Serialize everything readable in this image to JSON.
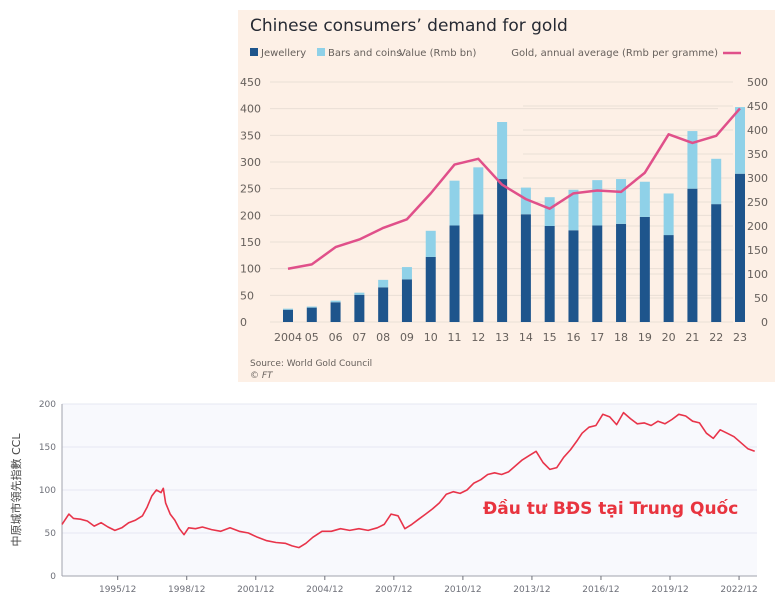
{
  "chart_data": [
    {
      "type": "bar",
      "title": "Chinese consumers’ demand for gold",
      "legend": {
        "jewellery": "Jewellery",
        "bars_coins": "Bars and coins",
        "value_label": "Value (Rmb bn)",
        "gold_price": "Gold, annual average (Rmb per gramme)"
      },
      "categories": [
        "2004",
        "05",
        "06",
        "07",
        "08",
        "09",
        "10",
        "11",
        "12",
        "13",
        "14",
        "15",
        "16",
        "17",
        "18",
        "19",
        "20",
        "21",
        "22",
        "23"
      ],
      "series": [
        {
          "name": "Jewellery",
          "axis": "left",
          "stacked": true,
          "color": "#1e558c",
          "values": [
            23,
            27,
            37,
            51,
            65,
            80,
            122,
            181,
            202,
            268,
            202,
            180,
            172,
            181,
            184,
            197,
            163,
            250,
            221,
            278
          ]
        },
        {
          "name": "Bars and coins",
          "axis": "left",
          "stacked": true,
          "color": "#8fd1e8",
          "values": [
            2,
            2,
            3,
            4,
            14,
            23,
            49,
            84,
            88,
            107,
            50,
            54,
            76,
            85,
            84,
            66,
            78,
            108,
            85,
            125
          ]
        },
        {
          "name": "Gold, annual average (Rmb per gramme)",
          "axis": "right",
          "type": "line",
          "color": "#e0508a",
          "values": [
            111,
            120,
            156,
            172,
            196,
            214,
            268,
            328,
            340,
            286,
            256,
            236,
            268,
            274,
            271,
            311,
            391,
            373,
            388,
            445
          ]
        }
      ],
      "ylim_left": [
        0,
        450
      ],
      "yticks_left": [
        "0",
        "50",
        "100",
        "150",
        "200",
        "250",
        "300",
        "350",
        "400",
        "450"
      ],
      "ylim_right": [
        0,
        500
      ],
      "yticks_right": [
        "0",
        "50",
        "100",
        "150",
        "200",
        "250",
        "300",
        "350",
        "400",
        "450",
        "500"
      ],
      "grid": true,
      "legend_position": "top",
      "source": "Source: World Gold Council",
      "credit": "© FT"
    },
    {
      "type": "line",
      "title": "",
      "ylabel": "中原城市領先指數 CCL",
      "ylim": [
        0,
        200
      ],
      "yticks": [
        "0",
        "50",
        "100",
        "150",
        "200"
      ],
      "xticks": [
        "1995/12",
        "1998/12",
        "2001/12",
        "2004/12",
        "2007/12",
        "2010/12",
        "2013/12",
        "2016/12",
        "2019/12",
        "2022/12"
      ],
      "xlim": [
        1993.5,
        2023.7
      ],
      "annotation": "Đầu tư BĐS tại Trung Quốc",
      "color": "#e8344a",
      "series": [
        {
          "name": "CCL",
          "x": [
            1993.5,
            1993.8,
            1994.0,
            1994.3,
            1994.6,
            1994.9,
            1995.2,
            1995.5,
            1995.8,
            1996.1,
            1996.4,
            1996.7,
            1997.0,
            1997.2,
            1997.4,
            1997.6,
            1997.8,
            1997.9,
            1998.0,
            1998.2,
            1998.4,
            1998.6,
            1998.8,
            1999.0,
            1999.3,
            1999.6,
            2000.0,
            2000.4,
            2000.8,
            2001.2,
            2001.6,
            2002.0,
            2002.4,
            2002.8,
            2003.2,
            2003.5,
            2003.8,
            2004.1,
            2004.4,
            2004.8,
            2005.2,
            2005.6,
            2006.0,
            2006.4,
            2006.8,
            2007.2,
            2007.5,
            2007.8,
            2008.1,
            2008.4,
            2008.7,
            2009.0,
            2009.3,
            2009.6,
            2009.9,
            2010.2,
            2010.5,
            2010.8,
            2011.1,
            2011.4,
            2011.7,
            2012.0,
            2012.3,
            2012.6,
            2012.9,
            2013.2,
            2013.5,
            2013.8,
            2014.1,
            2014.4,
            2014.7,
            2015.0,
            2015.3,
            2015.6,
            2015.9,
            2016.1,
            2016.4,
            2016.7,
            2017.0,
            2017.3,
            2017.6,
            2017.9,
            2018.2,
            2018.5,
            2018.8,
            2019.1,
            2019.4,
            2019.7,
            2020.0,
            2020.3,
            2020.6,
            2020.9,
            2021.2,
            2021.5,
            2021.8,
            2022.1,
            2022.4,
            2022.7,
            2023.0,
            2023.3,
            2023.6
          ],
          "values": [
            60,
            72,
            67,
            66,
            64,
            58,
            62,
            57,
            53,
            56,
            62,
            65,
            70,
            80,
            93,
            100,
            97,
            102,
            85,
            72,
            65,
            55,
            48,
            56,
            55,
            57,
            54,
            52,
            56,
            52,
            50,
            45,
            41,
            39,
            38,
            35,
            33,
            38,
            45,
            52,
            52,
            55,
            53,
            55,
            53,
            56,
            60,
            72,
            70,
            55,
            60,
            66,
            72,
            78,
            85,
            95,
            98,
            96,
            100,
            108,
            112,
            118,
            120,
            118,
            121,
            128,
            135,
            140,
            145,
            132,
            124,
            126,
            138,
            147,
            158,
            166,
            173,
            175,
            188,
            185,
            176,
            190,
            183,
            177,
            178,
            175,
            180,
            177,
            182,
            188,
            186,
            180,
            178,
            166,
            160,
            170,
            166,
            162,
            155,
            148,
            145
          ]
        }
      ]
    }
  ]
}
